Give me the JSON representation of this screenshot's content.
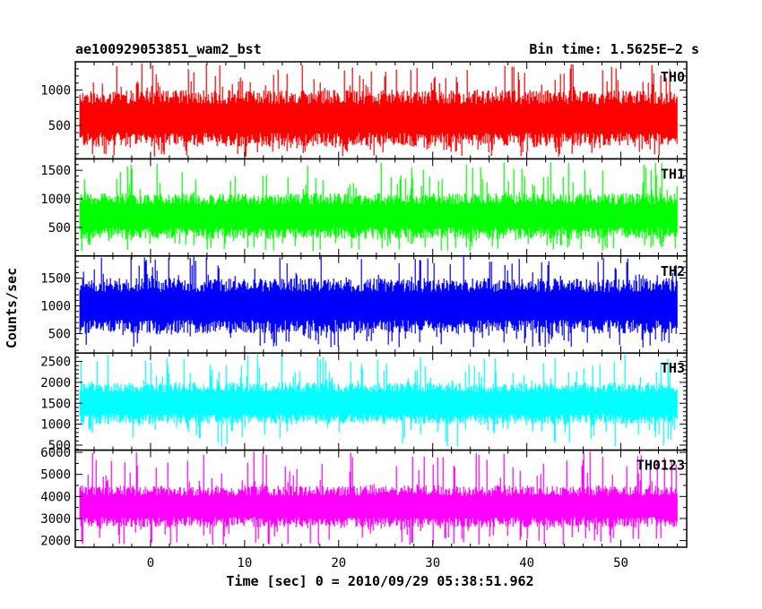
{
  "chart_data": {
    "type": "line",
    "title": "ae100929053851_wam2_bst",
    "subtitle": "Bin time: 1.5625E−2 s",
    "xlabel": "Time [sec] 0 = 2010/09/29 05:38:51.962",
    "ylabel": "Counts/sec",
    "xlim": [
      -8,
      57
    ],
    "x_data_range": [
      -7.5,
      56
    ],
    "x_ticks": [
      "0",
      "10",
      "20",
      "30",
      "40",
      "50"
    ],
    "grid": false,
    "legend": "top-right label inside each panel",
    "panels": [
      {
        "name": "TH0",
        "color": "#ff0000",
        "ylim": [
          30,
          1400
        ],
        "y_ticks": [
          "500",
          "1000"
        ],
        "typical_min": 200,
        "typical_max": 1000,
        "extreme_min": 60,
        "extreme_max": 1380
      },
      {
        "name": "TH1",
        "color": "#00ff00",
        "ylim": [
          0,
          1700
        ],
        "y_ticks": [
          "500",
          "1000",
          "1500"
        ],
        "typical_min": 300,
        "typical_max": 1100,
        "extreme_min": 80,
        "extreme_max": 1650
      },
      {
        "name": "TH2",
        "color": "#0000ff",
        "ylim": [
          150,
          1900
        ],
        "y_ticks": [
          "500",
          "1000",
          "1500"
        ],
        "typical_min": 500,
        "typical_max": 1500,
        "extreme_min": 250,
        "extreme_max": 1900
      },
      {
        "name": "TH3",
        "color": "#00ffff",
        "ylim": [
          380,
          2700
        ],
        "y_ticks": [
          "500",
          "1000",
          "1500",
          "2000",
          "2500"
        ],
        "typical_min": 1000,
        "typical_max": 2000,
        "extreme_min": 450,
        "extreme_max": 2700
      },
      {
        "name": "TH0123",
        "color": "#ff00ff",
        "ylim": [
          1700,
          6100
        ],
        "y_ticks": [
          "2000",
          "3000",
          "4000",
          "5000",
          "6000"
        ],
        "typical_min": 2600,
        "typical_max": 4500,
        "extreme_min": 1800,
        "extreme_max": 6050
      }
    ]
  }
}
